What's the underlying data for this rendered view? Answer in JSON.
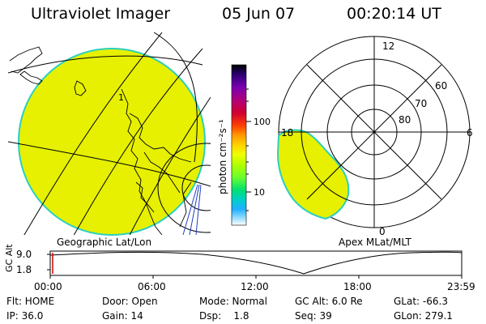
{
  "header": {
    "title": "Ultraviolet Imager",
    "date": "05 Jun 07",
    "time": "00:20:14 UT"
  },
  "geo_panel": {
    "label": "Geographic Lat/Lon",
    "lat_labels": [
      "1"
    ],
    "fill_color": "#e6f000"
  },
  "colorbar": {
    "unit_label": "photon cm⁻²s⁻¹",
    "ticks": [
      "100",
      "10"
    ],
    "colors": [
      "#000000",
      "#2a0070",
      "#7a00b0",
      "#b0007a",
      "#d00030",
      "#ff4000",
      "#ff9a00",
      "#ffd200",
      "#f0ff00",
      "#b4ff00",
      "#6cff2a",
      "#00e070",
      "#00d0c8",
      "#20b0ff",
      "#8ad8ff",
      "#ffffff"
    ]
  },
  "polar_panel": {
    "label": "Apex MLat/MLT",
    "mlt_labels": {
      "top": "12",
      "right": "6",
      "bottom": "0",
      "left": "18"
    },
    "lat_labels": [
      "60",
      "70",
      "80"
    ],
    "fill_color": "#e6f000"
  },
  "altitude_plot": {
    "ylabel": "GC Alt",
    "yticks": [
      "9.0",
      "1.8"
    ],
    "xticks": [
      "00:00",
      "06:00",
      "12:00",
      "18:00",
      "23:59"
    ]
  },
  "status": {
    "row1": {
      "flt": "Flt: HOME",
      "door": "Door: Open",
      "mode": "Mode: Normal",
      "gc_alt": "GC Alt: 6.0 Re",
      "glat": "GLat: -66.3"
    },
    "row2": {
      "ip": "IP: 36.0",
      "gain": "Gain: 14",
      "dsp": "Dsp:    1.8",
      "seq": "Seq: 39",
      "glon": "GLon: 279.1"
    }
  }
}
